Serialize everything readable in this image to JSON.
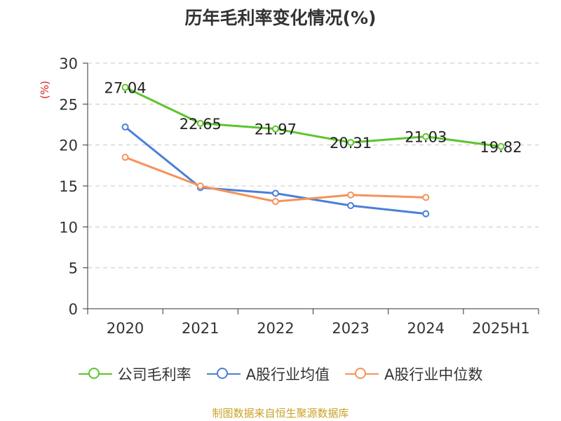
{
  "chart_data": {
    "type": "line",
    "title": "历年毛利率变化情况(%)",
    "ylabel": "(%)",
    "xlabel": "",
    "ylim": [
      0,
      30
    ],
    "yticks": [
      0,
      5,
      10,
      15,
      20,
      25,
      30
    ],
    "categories": [
      "2020",
      "2021",
      "2022",
      "2023",
      "2024",
      "2025H1"
    ],
    "series": [
      {
        "name": "公司毛利率",
        "color": "#5cc52b",
        "values": [
          27.04,
          22.65,
          21.97,
          20.31,
          21.03,
          19.82
        ],
        "labels": [
          "27.04",
          "22.65",
          "21.97",
          "20.31",
          "21.03",
          "19.82"
        ],
        "show_labels": true
      },
      {
        "name": "A股行业均值",
        "color": "#4a7fd9",
        "values": [
          22.2,
          14.8,
          14.1,
          12.6,
          11.6,
          null
        ],
        "show_labels": false
      },
      {
        "name": "A股行业中位数",
        "color": "#f5935a",
        "values": [
          18.5,
          15.0,
          13.1,
          13.9,
          13.6,
          null
        ],
        "show_labels": false
      }
    ],
    "grid": true,
    "legend_position": "bottom"
  },
  "source": "制图数据来自恒生聚源数据库"
}
